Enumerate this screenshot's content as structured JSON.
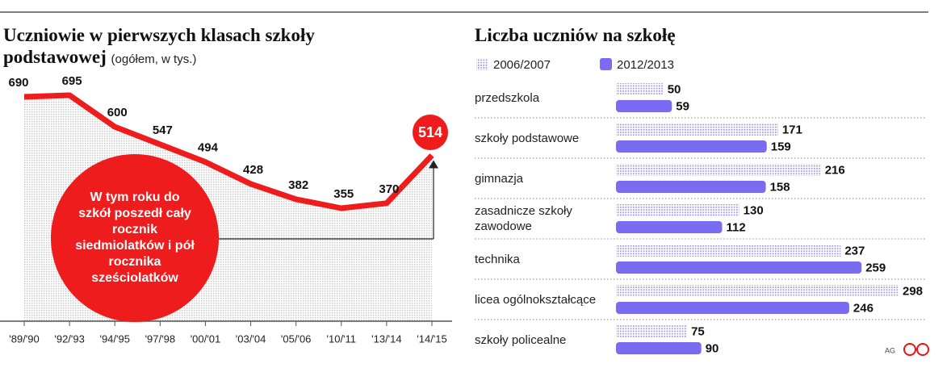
{
  "chart_data": [
    {
      "type": "line",
      "title": "Uczniowie w pierwszych klasach szkoły podstawowej",
      "subtitle": "(ogółem, w tys.)",
      "categories": [
        "'89/'90",
        "'92/'93",
        "'94/'95",
        "'97/'98",
        "'00/'01",
        "'03/'04",
        "'05/'06",
        "'10/'11",
        "'13/'14",
        "'14/'15"
      ],
      "values": [
        690,
        695,
        600,
        547,
        494,
        428,
        382,
        355,
        370,
        514
      ],
      "color": "#ee1c1c",
      "annotation": "W tym roku do szkół poszedł cały rocznik siedmiolatków i pół rocznika sześciolatków"
    },
    {
      "type": "hbar",
      "title": "Liczba uczniów na szkołę",
      "categories": [
        "przedszkola",
        "szkoły podstawowe",
        "gimnazja",
        "zasadnicze szkoły zawodowe",
        "technika",
        "licea ogólnokształcące",
        "szkoły policealne"
      ],
      "series": [
        {
          "name": "2006/2007",
          "color": "#9c95ea",
          "pattern": "dots",
          "values": [
            50,
            171,
            216,
            130,
            237,
            298,
            75
          ]
        },
        {
          "name": "2012/2013",
          "color": "#7a6cf0",
          "values": [
            59,
            159,
            158,
            112,
            259,
            246,
            90
          ]
        }
      ]
    }
  ],
  "credit": "AG",
  "logo": "CP"
}
